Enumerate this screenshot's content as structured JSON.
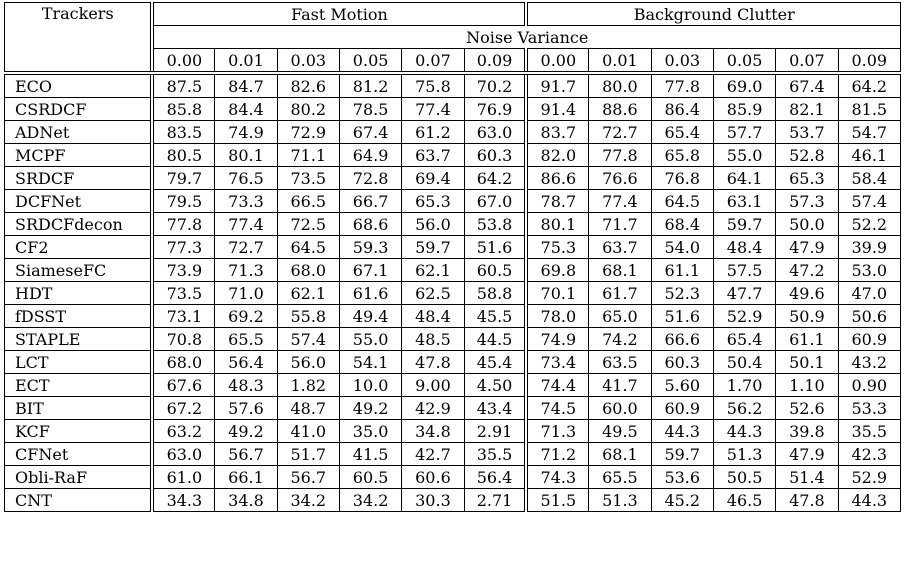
{
  "header": {
    "trackers": "Trackers",
    "group1": "Fast Motion",
    "group2": "Background Clutter",
    "noise_variance": "Noise Variance",
    "levels": [
      "0.00",
      "0.01",
      "0.03",
      "0.05",
      "0.07",
      "0.09"
    ]
  },
  "rows": [
    {
      "name": "ECO",
      "fm": [
        "87.5",
        "84.7",
        "82.6",
        "81.2",
        "75.8",
        "70.2"
      ],
      "bc": [
        "91.7",
        "80.0",
        "77.8",
        "69.0",
        "67.4",
        "64.2"
      ]
    },
    {
      "name": "CSRDCF",
      "fm": [
        "85.8",
        "84.4",
        "80.2",
        "78.5",
        "77.4",
        "76.9"
      ],
      "bc": [
        "91.4",
        "88.6",
        "86.4",
        "85.9",
        "82.1",
        "81.5"
      ]
    },
    {
      "name": "ADNet",
      "fm": [
        "83.5",
        "74.9",
        "72.9",
        "67.4",
        "61.2",
        "63.0"
      ],
      "bc": [
        "83.7",
        "72.7",
        "65.4",
        "57.7",
        "53.7",
        "54.7"
      ]
    },
    {
      "name": "MCPF",
      "fm": [
        "80.5",
        "80.1",
        "71.1",
        "64.9",
        "63.7",
        "60.3"
      ],
      "bc": [
        "82.0",
        "77.8",
        "65.8",
        "55.0",
        "52.8",
        "46.1"
      ]
    },
    {
      "name": "SRDCF",
      "fm": [
        "79.7",
        "76.5",
        "73.5",
        "72.8",
        "69.4",
        "64.2"
      ],
      "bc": [
        "86.6",
        "76.6",
        "76.8",
        "64.1",
        "65.3",
        "58.4"
      ]
    },
    {
      "name": "DCFNet",
      "fm": [
        "79.5",
        "73.3",
        "66.5",
        "66.7",
        "65.3",
        "67.0"
      ],
      "bc": [
        "78.7",
        "77.4",
        "64.5",
        "63.1",
        "57.3",
        "57.4"
      ]
    },
    {
      "name": "SRDCFdecon",
      "fm": [
        "77.8",
        "77.4",
        "72.5",
        "68.6",
        "56.0",
        "53.8"
      ],
      "bc": [
        "80.1",
        "71.7",
        "68.4",
        "59.7",
        "50.0",
        "52.2"
      ]
    },
    {
      "name": "CF2",
      "fm": [
        "77.3",
        "72.7",
        "64.5",
        "59.3",
        "59.7",
        "51.6"
      ],
      "bc": [
        "75.3",
        "63.7",
        "54.0",
        "48.4",
        "47.9",
        "39.9"
      ]
    },
    {
      "name": "SiameseFC",
      "fm": [
        "73.9",
        "71.3",
        "68.0",
        "67.1",
        "62.1",
        "60.5"
      ],
      "bc": [
        "69.8",
        "68.1",
        "61.1",
        "57.5",
        "47.2",
        "53.0"
      ]
    },
    {
      "name": "HDT",
      "fm": [
        "73.5",
        "71.0",
        "62.1",
        "61.6",
        "62.5",
        "58.8"
      ],
      "bc": [
        "70.1",
        "61.7",
        "52.3",
        "47.7",
        "49.6",
        "47.0"
      ]
    },
    {
      "name": "fDSST",
      "fm": [
        "73.1",
        "69.2",
        "55.8",
        "49.4",
        "48.4",
        "45.5"
      ],
      "bc": [
        "78.0",
        "65.0",
        "51.6",
        "52.9",
        "50.9",
        "50.6"
      ]
    },
    {
      "name": "STAPLE",
      "fm": [
        "70.8",
        "65.5",
        "57.4",
        "55.0",
        "48.5",
        "44.5"
      ],
      "bc": [
        "74.9",
        "74.2",
        "66.6",
        "65.4",
        "61.1",
        "60.9"
      ]
    },
    {
      "name": "LCT",
      "fm": [
        "68.0",
        "56.4",
        "56.0",
        "54.1",
        "47.8",
        "45.4"
      ],
      "bc": [
        "73.4",
        "63.5",
        "60.3",
        "50.4",
        "50.1",
        "43.2"
      ]
    },
    {
      "name": "ECT",
      "fm": [
        "67.6",
        "48.3",
        "1.82",
        "10.0",
        "9.00",
        "4.50"
      ],
      "bc": [
        "74.4",
        "41.7",
        "5.60",
        "1.70",
        "1.10",
        "0.90"
      ]
    },
    {
      "name": "BIT",
      "fm": [
        "67.2",
        "57.6",
        "48.7",
        "49.2",
        "42.9",
        "43.4"
      ],
      "bc": [
        "74.5",
        "60.0",
        "60.9",
        "56.2",
        "52.6",
        "53.3"
      ]
    },
    {
      "name": "KCF",
      "fm": [
        "63.2",
        "49.2",
        "41.0",
        "35.0",
        "34.8",
        "2.91"
      ],
      "bc": [
        "71.3",
        "49.5",
        "44.3",
        "44.3",
        "39.8",
        "35.5"
      ]
    },
    {
      "name": "CFNet",
      "fm": [
        "63.0",
        "56.7",
        "51.7",
        "41.5",
        "42.7",
        "35.5"
      ],
      "bc": [
        "71.2",
        "68.1",
        "59.7",
        "51.3",
        "47.9",
        "42.3"
      ]
    },
    {
      "name": "Obli-RaF",
      "fm": [
        "61.0",
        "66.1",
        "56.7",
        "60.5",
        "60.6",
        "56.4"
      ],
      "bc": [
        "74.3",
        "65.5",
        "53.6",
        "50.5",
        "51.4",
        "52.9"
      ]
    },
    {
      "name": "CNT",
      "fm": [
        "34.3",
        "34.8",
        "34.2",
        "34.2",
        "30.3",
        "2.71"
      ],
      "bc": [
        "51.5",
        "51.3",
        "45.2",
        "46.5",
        "47.8",
        "44.3"
      ]
    }
  ]
}
